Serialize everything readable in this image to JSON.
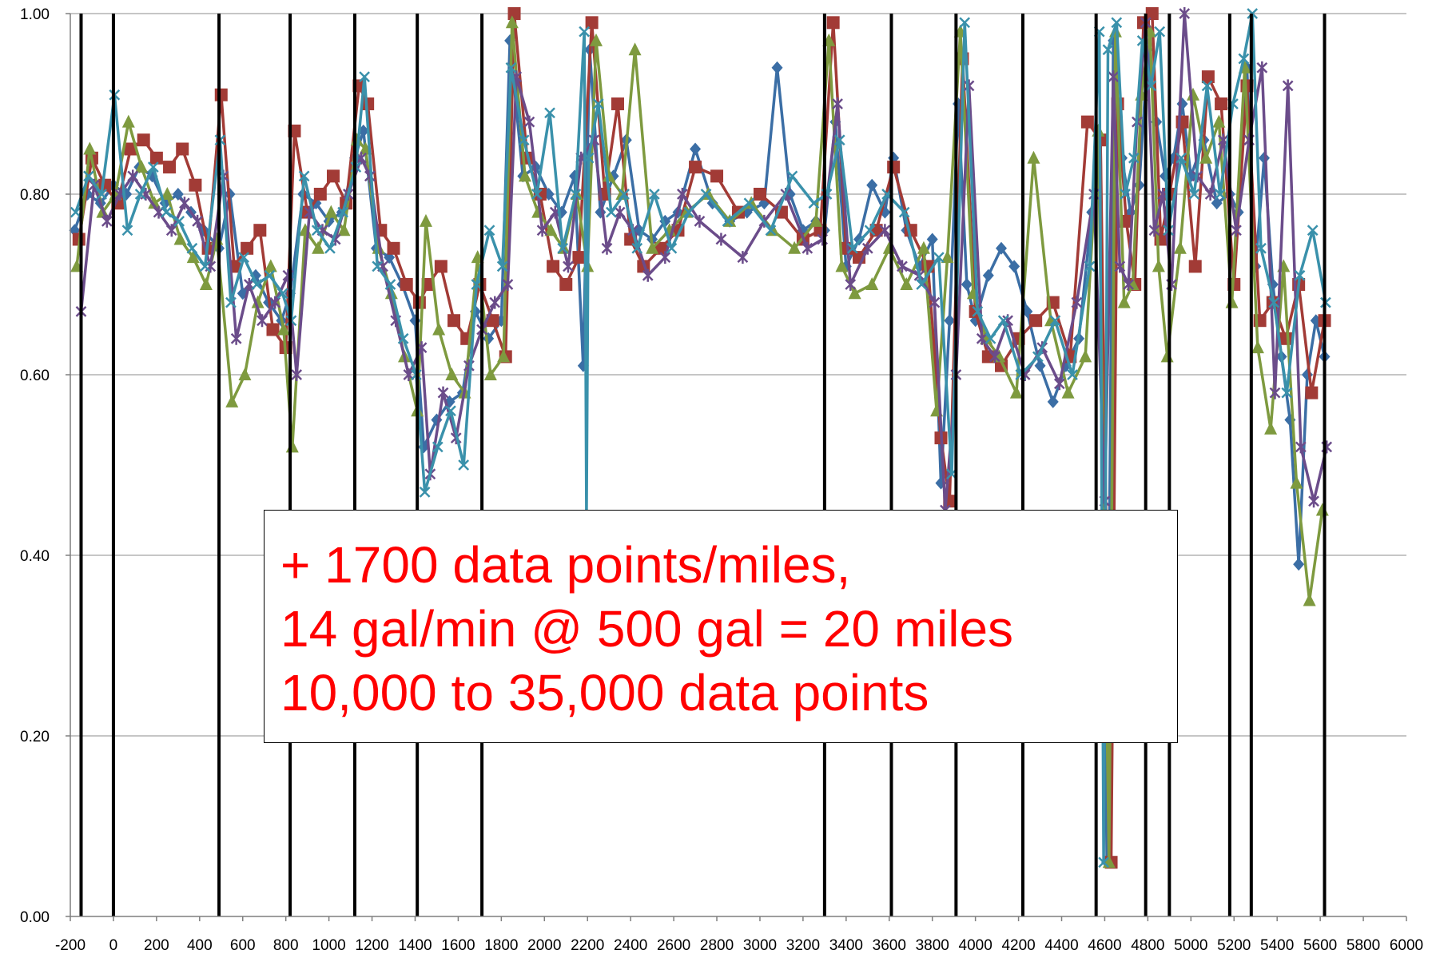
{
  "chart_data": {
    "type": "line",
    "title": "",
    "xlabel": "",
    "ylabel": "",
    "xlim": [
      -200,
      6000
    ],
    "ylim": [
      0,
      1
    ],
    "grid": "horizontal",
    "x_ticks": [
      "-200",
      "0",
      "200",
      "400",
      "600",
      "800",
      "1000",
      "1200",
      "1400",
      "1600",
      "1800",
      "2000",
      "2200",
      "2400",
      "2600",
      "2800",
      "3000",
      "3200",
      "3400",
      "3600",
      "3800",
      "4000",
      "4200",
      "4400",
      "4600",
      "4800",
      "5000",
      "5200",
      "5400",
      "5600",
      "5800",
      "6000"
    ],
    "y_ticks": [
      "0.00",
      "0.20",
      "0.40",
      "0.60",
      "0.80",
      "1.00"
    ],
    "vertical_markers": [
      -150,
      0,
      490,
      820,
      1120,
      1410,
      1710,
      3300,
      3610,
      3910,
      4220,
      4560,
      4790,
      4900,
      5180,
      5280,
      5620
    ],
    "series": [
      {
        "marker": "diamond",
        "color": "#3b6ea5",
        "x": [
          -180,
          -120,
          -60,
          0,
          60,
          120,
          180,
          240,
          300,
          360,
          420,
          490,
          540,
          600,
          660,
          720,
          780,
          820,
          880,
          940,
          1000,
          1060,
          1120,
          1160,
          1220,
          1280,
          1340,
          1400,
          1440,
          1500,
          1560,
          1620,
          1680,
          1740,
          1800,
          1840,
          1900,
          1960,
          2020,
          2080,
          2140,
          2180,
          2210,
          2260,
          2320,
          2380,
          2440,
          2500,
          2560,
          2620,
          2700,
          2780,
          2860,
          2940,
          3020,
          3080,
          3140,
          3200,
          3260,
          3300,
          3350,
          3400,
          3460,
          3520,
          3580,
          3620,
          3680,
          3740,
          3800,
          3840,
          3880,
          3920,
          3960,
          4000,
          4060,
          4120,
          4180,
          4240,
          4300,
          4360,
          4420,
          4480,
          4540,
          4580,
          4610,
          4640,
          4680,
          4720,
          4760,
          4800,
          4840,
          4880,
          4920,
          4960,
          5000,
          5060,
          5120,
          5180,
          5220,
          5260,
          5300,
          5340,
          5380,
          5420,
          5460,
          5500,
          5540,
          5580,
          5620
        ],
        "y": [
          0.76,
          0.8,
          0.79,
          0.81,
          0.8,
          0.83,
          0.82,
          0.79,
          0.8,
          0.78,
          0.76,
          0.74,
          0.8,
          0.69,
          0.71,
          0.68,
          0.66,
          0.69,
          0.8,
          0.79,
          0.77,
          0.78,
          0.84,
          0.87,
          0.74,
          0.73,
          0.7,
          0.66,
          0.52,
          0.55,
          0.57,
          0.58,
          0.67,
          0.64,
          0.66,
          0.97,
          0.82,
          0.83,
          0.8,
          0.78,
          0.82,
          0.61,
          0.96,
          0.78,
          0.82,
          0.86,
          0.76,
          0.75,
          0.77,
          0.78,
          0.85,
          0.79,
          0.77,
          0.78,
          0.79,
          0.94,
          0.8,
          0.76,
          0.77,
          0.76,
          0.88,
          0.72,
          0.75,
          0.81,
          0.78,
          0.84,
          0.76,
          0.72,
          0.75,
          0.48,
          0.66,
          0.9,
          0.7,
          0.66,
          0.71,
          0.74,
          0.72,
          0.67,
          0.61,
          0.57,
          0.61,
          0.64,
          0.78,
          0.86,
          0.06,
          0.97,
          0.84,
          0.78,
          0.81,
          0.96,
          0.88,
          0.82,
          0.84,
          0.9,
          0.82,
          0.86,
          0.79,
          0.8,
          0.78,
          0.94,
          0.72,
          0.84,
          0.7,
          0.62,
          0.55,
          0.39,
          0.6,
          0.66,
          0.62
        ]
      },
      {
        "marker": "square",
        "color": "#a23b36",
        "x": [
          -160,
          -100,
          -40,
          20,
          80,
          140,
          200,
          260,
          320,
          380,
          440,
          500,
          560,
          620,
          680,
          740,
          800,
          840,
          900,
          960,
          1020,
          1080,
          1140,
          1180,
          1240,
          1300,
          1360,
          1420,
          1460,
          1520,
          1580,
          1640,
          1700,
          1760,
          1820,
          1860,
          1920,
          1980,
          2040,
          2100,
          2160,
          2220,
          2280,
          2340,
          2400,
          2460,
          2540,
          2620,
          2700,
          2800,
          2900,
          3000,
          3100,
          3200,
          3280,
          3340,
          3400,
          3460,
          3540,
          3620,
          3700,
          3780,
          3840,
          3880,
          3940,
          4000,
          4060,
          4120,
          4200,
          4280,
          4360,
          4440,
          4520,
          4580,
          4630,
          4660,
          4700,
          4740,
          4780,
          4820,
          4860,
          4900,
          4960,
          5020,
          5080,
          5140,
          5200,
          5260,
          5320,
          5380,
          5440,
          5500,
          5560,
          5620
        ],
        "y": [
          0.75,
          0.84,
          0.81,
          0.79,
          0.85,
          0.86,
          0.84,
          0.83,
          0.85,
          0.81,
          0.74,
          0.91,
          0.72,
          0.74,
          0.76,
          0.65,
          0.63,
          0.87,
          0.78,
          0.8,
          0.82,
          0.79,
          0.92,
          0.9,
          0.76,
          0.74,
          0.7,
          0.68,
          0.7,
          0.72,
          0.66,
          0.64,
          0.7,
          0.66,
          0.62,
          1.0,
          0.84,
          0.8,
          0.72,
          0.7,
          0.73,
          0.99,
          0.8,
          0.9,
          0.75,
          0.72,
          0.74,
          0.76,
          0.83,
          0.82,
          0.78,
          0.8,
          0.78,
          0.75,
          0.76,
          0.99,
          0.74,
          0.73,
          0.76,
          0.83,
          0.76,
          0.72,
          0.53,
          0.46,
          0.95,
          0.67,
          0.62,
          0.61,
          0.64,
          0.66,
          0.68,
          0.62,
          0.88,
          0.86,
          0.06,
          0.9,
          0.77,
          0.7,
          0.99,
          1.0,
          0.75,
          0.8,
          0.88,
          0.72,
          0.93,
          0.9,
          0.7,
          0.92,
          0.66,
          0.68,
          0.64,
          0.7,
          0.58,
          0.66
        ]
      },
      {
        "marker": "triangle",
        "color": "#7e9a3f",
        "x": [
          -170,
          -110,
          -50,
          10,
          70,
          130,
          190,
          250,
          310,
          370,
          430,
          480,
          550,
          610,
          670,
          730,
          790,
          830,
          890,
          950,
          1010,
          1070,
          1130,
          1170,
          1230,
          1290,
          1350,
          1410,
          1450,
          1510,
          1570,
          1630,
          1690,
          1750,
          1810,
          1850,
          1910,
          1970,
          2030,
          2090,
          2150,
          2200,
          2240,
          2300,
          2360,
          2420,
          2500,
          2580,
          2660,
          2760,
          2860,
          2960,
          3060,
          3160,
          3260,
          3320,
          3380,
          3440,
          3520,
          3600,
          3680,
          3760,
          3820,
          3870,
          3930,
          3990,
          4050,
          4110,
          4190,
          4270,
          4350,
          4430,
          4510,
          4570,
          4620,
          4650,
          4690,
          4730,
          4770,
          4810,
          4850,
          4890,
          4950,
          5010,
          5070,
          5130,
          5190,
          5250,
          5310,
          5370,
          5430,
          5490,
          5550,
          5610
        ],
        "y": [
          0.72,
          0.85,
          0.78,
          0.8,
          0.88,
          0.83,
          0.79,
          0.8,
          0.75,
          0.73,
          0.7,
          0.75,
          0.57,
          0.6,
          0.68,
          0.72,
          0.65,
          0.52,
          0.76,
          0.74,
          0.78,
          0.76,
          0.86,
          0.85,
          0.74,
          0.69,
          0.62,
          0.56,
          0.77,
          0.65,
          0.6,
          0.58,
          0.73,
          0.6,
          0.62,
          0.99,
          0.82,
          0.78,
          0.76,
          0.74,
          0.8,
          0.72,
          0.97,
          0.82,
          0.8,
          0.96,
          0.74,
          0.76,
          0.78,
          0.8,
          0.77,
          0.79,
          0.76,
          0.74,
          0.77,
          0.97,
          0.72,
          0.69,
          0.7,
          0.74,
          0.7,
          0.74,
          0.56,
          0.73,
          0.98,
          0.69,
          0.64,
          0.62,
          0.58,
          0.84,
          0.66,
          0.58,
          0.62,
          0.87,
          0.06,
          0.98,
          0.68,
          0.7,
          0.91,
          0.98,
          0.72,
          0.62,
          0.74,
          0.91,
          0.84,
          0.88,
          0.68,
          0.94,
          0.63,
          0.54,
          0.72,
          0.48,
          0.35,
          0.45
        ]
      },
      {
        "marker": "star",
        "color": "#6b4c8a",
        "x": [
          -150,
          -90,
          -30,
          30,
          90,
          150,
          210,
          270,
          330,
          390,
          450,
          510,
          570,
          630,
          690,
          750,
          810,
          850,
          910,
          970,
          1030,
          1090,
          1150,
          1190,
          1250,
          1310,
          1370,
          1430,
          1470,
          1530,
          1590,
          1650,
          1710,
          1770,
          1830,
          1870,
          1930,
          1990,
          2050,
          2110,
          2170,
          2230,
          2290,
          2350,
          2410,
          2480,
          2560,
          2640,
          2720,
          2820,
          2920,
          3020,
          3120,
          3220,
          3290,
          3360,
          3420,
          3500,
          3580,
          3660,
          3740,
          3810,
          3860,
          3910,
          3970,
          4030,
          4090,
          4150,
          4230,
          4310,
          4390,
          4470,
          4550,
          4600,
          4640,
          4670,
          4710,
          4750,
          4790,
          4830,
          4870,
          4910,
          4970,
          5030,
          5090,
          5150,
          5210,
          5270,
          5330,
          5390,
          5450,
          5510,
          5570,
          5630
        ],
        "y": [
          0.67,
          0.81,
          0.77,
          0.8,
          0.82,
          0.8,
          0.78,
          0.76,
          0.79,
          0.77,
          0.72,
          0.82,
          0.64,
          0.7,
          0.66,
          0.68,
          0.71,
          0.6,
          0.78,
          0.76,
          0.75,
          0.8,
          0.84,
          0.82,
          0.72,
          0.66,
          0.6,
          0.63,
          0.49,
          0.58,
          0.53,
          0.61,
          0.65,
          0.68,
          0.7,
          0.93,
          0.88,
          0.76,
          0.78,
          0.72,
          0.84,
          0.86,
          0.74,
          0.78,
          0.76,
          0.71,
          0.73,
          0.8,
          0.77,
          0.75,
          0.73,
          0.77,
          0.8,
          0.74,
          0.75,
          0.9,
          0.7,
          0.74,
          0.76,
          0.72,
          0.71,
          0.68,
          0.45,
          0.6,
          0.92,
          0.64,
          0.62,
          0.66,
          0.6,
          0.63,
          0.59,
          0.68,
          0.8,
          0.46,
          0.93,
          0.72,
          0.7,
          0.88,
          0.99,
          0.76,
          0.8,
          0.7,
          1.0,
          0.82,
          0.8,
          0.86,
          0.76,
          0.86,
          0.94,
          0.58,
          0.92,
          0.52,
          0.46,
          0.52
        ]
      },
      {
        "marker": "x",
        "color": "#3a91ab",
        "x": [
          -175,
          -115,
          -55,
          5,
          65,
          125,
          185,
          245,
          305,
          365,
          425,
          495,
          545,
          605,
          665,
          725,
          785,
          825,
          885,
          945,
          1005,
          1065,
          1125,
          1165,
          1225,
          1285,
          1345,
          1405,
          1445,
          1505,
          1565,
          1625,
          1685,
          1745,
          1805,
          1845,
          1905,
          1965,
          2025,
          2085,
          2145,
          2185,
          2195,
          2205,
          2250,
          2310,
          2370,
          2430,
          2510,
          2590,
          2670,
          2750,
          2850,
          2950,
          3050,
          3150,
          3250,
          3310,
          3370,
          3430,
          3510,
          3590,
          3670,
          3750,
          3830,
          3890,
          3950,
          4010,
          4070,
          4130,
          4210,
          4290,
          4370,
          4450,
          4530,
          4575,
          4595,
          4615,
          4655,
          4695,
          4735,
          4775,
          4815,
          4855,
          4895,
          4955,
          5015,
          5075,
          5135,
          5195,
          5245,
          5285,
          5325,
          5385,
          5445,
          5505,
          5565,
          5625
        ],
        "y": [
          0.78,
          0.82,
          0.8,
          0.91,
          0.76,
          0.8,
          0.83,
          0.78,
          0.77,
          0.74,
          0.72,
          0.86,
          0.68,
          0.73,
          0.7,
          0.71,
          0.69,
          0.66,
          0.82,
          0.76,
          0.74,
          0.78,
          0.83,
          0.93,
          0.72,
          0.7,
          0.64,
          0.6,
          0.47,
          0.52,
          0.56,
          0.5,
          0.7,
          0.76,
          0.72,
          0.94,
          0.86,
          0.8,
          0.89,
          0.74,
          0.8,
          0.98,
          0.44,
          0.84,
          0.9,
          0.78,
          0.8,
          0.74,
          0.8,
          0.74,
          0.78,
          0.8,
          0.77,
          0.79,
          0.76,
          0.82,
          0.79,
          0.8,
          0.86,
          0.74,
          0.76,
          0.8,
          0.78,
          0.7,
          0.73,
          0.49,
          0.99,
          0.67,
          0.64,
          0.66,
          0.6,
          0.62,
          0.66,
          0.6,
          0.72,
          0.98,
          0.06,
          0.96,
          0.99,
          0.8,
          0.84,
          0.97,
          0.92,
          0.98,
          0.76,
          0.84,
          0.8,
          0.92,
          0.8,
          0.9,
          0.95,
          1.0,
          0.74,
          0.68,
          0.58,
          0.71,
          0.76,
          0.68
        ]
      }
    ]
  },
  "annotation": {
    "line1": "+ 1700 data points/miles,",
    "line2": "14 gal/min @ 500 gal = 20 miles",
    "line3": "10,000 to 35,000 data points"
  }
}
